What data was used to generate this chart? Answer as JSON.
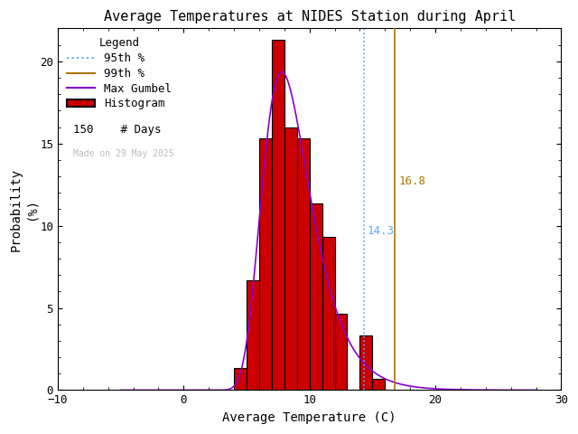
{
  "title": "Average Temperatures at NIDES Station during April",
  "xlabel": "Average Temperature (C)",
  "ylabel_line1": "Probability",
  "ylabel_line2": "(%)",
  "xlim": [
    -10,
    30
  ],
  "ylim": [
    0,
    22
  ],
  "bin_edges": [
    4,
    5,
    6,
    7,
    8,
    9,
    10,
    11,
    12,
    13,
    14,
    15,
    16
  ],
  "bin_heights": [
    1.33,
    6.67,
    15.33,
    21.33,
    16.0,
    15.33,
    11.33,
    9.33,
    4.67,
    0.0,
    3.33,
    0.67
  ],
  "histogram_color": "#cc0000",
  "histogram_edgecolor": "#000000",
  "gumbel_color": "#8800cc",
  "p95_value": 14.3,
  "p99_value": 16.8,
  "p95_color": "#55aaff",
  "p99_color": "#aa7700",
  "n_days": 150,
  "watermark": "Made on 29 May 2025",
  "watermark_color": "#bbbbbb",
  "background_color": "#ffffff",
  "title_fontsize": 11,
  "axis_fontsize": 10,
  "legend_fontsize": 9,
  "tick_fontsize": 9,
  "gumbel_mu": 7.8,
  "gumbel_beta": 1.9
}
